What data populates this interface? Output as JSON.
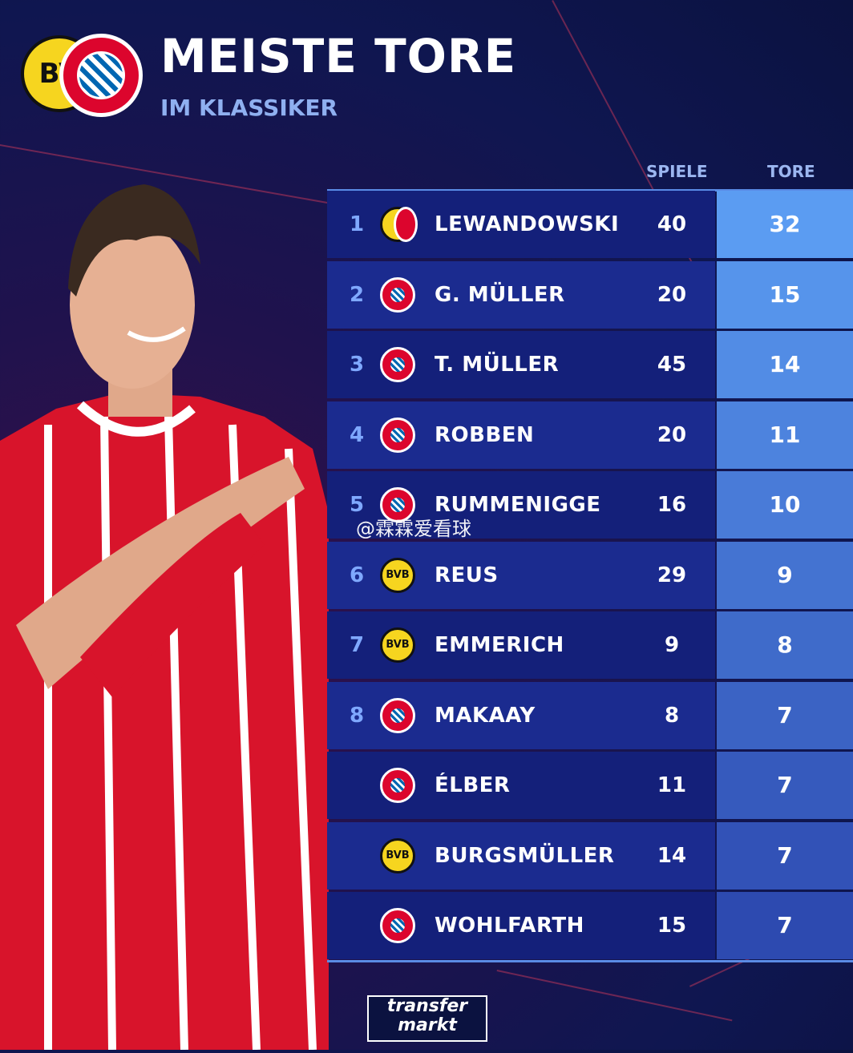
{
  "header": {
    "title": "MEISTE TORE",
    "subtitle": "IM KLASSIKER",
    "logos": [
      "bvb-crest-icon",
      "fcb-crest-icon"
    ],
    "bvb_letters": "BV"
  },
  "columns": {
    "spiele": "SPIELE",
    "tore": "TORE"
  },
  "rows": [
    {
      "rank": "1",
      "club": "both",
      "name": "LEWANDOWSKI",
      "spiele": "40",
      "tore": "32"
    },
    {
      "rank": "2",
      "club": "fcb",
      "name": "G. MÜLLER",
      "spiele": "20",
      "tore": "15"
    },
    {
      "rank": "3",
      "club": "fcb",
      "name": "T. MÜLLER",
      "spiele": "45",
      "tore": "14"
    },
    {
      "rank": "4",
      "club": "fcb",
      "name": "ROBBEN",
      "spiele": "20",
      "tore": "11"
    },
    {
      "rank": "5",
      "club": "fcb",
      "name": "RUMMENIGGE",
      "spiele": "16",
      "tore": "10"
    },
    {
      "rank": "6",
      "club": "bvb",
      "name": "REUS",
      "spiele": "29",
      "tore": "9"
    },
    {
      "rank": "7",
      "club": "bvb",
      "name": "EMMERICH",
      "spiele": "9",
      "tore": "8"
    },
    {
      "rank": "8",
      "club": "fcb",
      "name": "MAKAAY",
      "spiele": "8",
      "tore": "7"
    },
    {
      "rank": "",
      "club": "fcb",
      "name": "ÉLBER",
      "spiele": "11",
      "tore": "7"
    },
    {
      "rank": "",
      "club": "bvb",
      "name": "BURGSMÜLLER",
      "spiele": "14",
      "tore": "7"
    },
    {
      "rank": "",
      "club": "fcb",
      "name": "WOHLFARTH",
      "spiele": "15",
      "tore": "7"
    }
  ],
  "bvb_badge_text": "BVB",
  "watermark": "@霖霖爱看球",
  "footer_logo": {
    "line1": "transfer",
    "line2": "markt"
  },
  "colors": {
    "row_main_a": "#14207a",
    "row_main_b": "#1b2b8f",
    "tore_top": "#5b9cf2",
    "tore_bottom": "#2d4ab0",
    "rank": "#7fa8ff",
    "subtitle": "#8fb0f0"
  }
}
